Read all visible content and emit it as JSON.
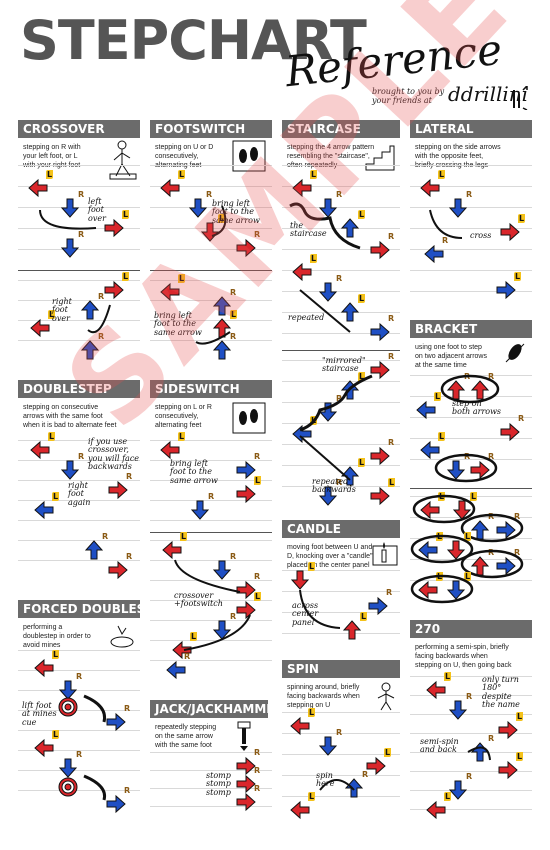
{
  "header": {
    "title": "STEPCHART",
    "subtitle": "Reference",
    "brought": "brought to you by\nyour friends at",
    "logo": "ddrillini"
  },
  "watermark": "SAMPLE",
  "colors": {
    "red": "#d9262b",
    "blue": "#1f4fc4",
    "header_bg": "#6b6b6b",
    "foot_l": "#f4c21a"
  },
  "sections": {
    "crossover": {
      "title": "CROSSOVER",
      "desc": "stepping on R with\nyour left foot, or L\nwith your right foot",
      "notes": [
        "left\nfoot\nover",
        "right\nfoot\nover"
      ]
    },
    "footswitch": {
      "title": "FOOTSWITCH",
      "desc": "stepping on U or D\nconsecutively,\nalternating feet",
      "notes": [
        "bring left\nfoot to the\nsame arrow",
        "bring left\nfoot to the\nsame arrow"
      ]
    },
    "staircase": {
      "title": "STAIRCASE",
      "desc": "stepping the 4 arrow pattern\nresembling the \"staircase\",\noften repeatedly",
      "notes": [
        "the\nstaircase",
        "repeated",
        "\"mirrored\"\nstaircase",
        "repeated\nbackwards"
      ]
    },
    "lateral": {
      "title": "LATERAL",
      "desc": "stepping on the side arrows\nwith the opposite feet,\nbriefly crossing the legs",
      "notes": [
        "cross"
      ]
    },
    "bracket": {
      "title": "BRACKET",
      "desc": "using one foot to step\non two adjacent arrows\nat the same time",
      "notes": [
        "step on\nboth arrows"
      ]
    },
    "doublestep": {
      "title": "DOUBLESTEP",
      "desc": "stepping on consecutive\narrows with the same foot\nwhen it is bad to alternate feet",
      "notes": [
        "if you use\ncrossover,\nyou will face\nbackwards",
        "right\nfoot\nagain"
      ]
    },
    "sideswitch": {
      "title": "SIDESWITCH",
      "desc": "stepping on L or R\nconsecutively,\nalternating feet",
      "notes": [
        "bring left\nfoot to the\nsame arrow",
        "crossover\n+footswitch"
      ]
    },
    "candle": {
      "title": "CANDLE",
      "desc": "moving foot between U and\nD, knocking over a \"candle\"\nplaced on the center panel",
      "notes": [
        "across\ncenter\npanel"
      ]
    },
    "forced_doublestep": {
      "title": "FORCED DOUBLESTEP",
      "desc": "performing a\ndoublestep in order to\navoid mines",
      "notes": [
        "lift foot\nat mines\ncue"
      ]
    },
    "jack": {
      "title": "JACK/JACKHAMMER",
      "desc": "repeatedly stepping\non the same arrow\nwith the same foot",
      "notes": [
        "stomp\nstomp\nstomp"
      ]
    },
    "spin": {
      "title": "SPIN",
      "desc": "spinning around, briefly\nfacing backwards when\nstepping on U",
      "notes": [
        "spin\nhere"
      ]
    },
    "turn270": {
      "title": "270",
      "desc": "performing a semi-spin, briefly\nfacing backwards when\nstepping on U, then going back",
      "notes": [
        "only turn\n180°\ndespite\nthe name",
        "semi-spin\nand back"
      ]
    }
  },
  "foot_labels": {
    "left": "L",
    "right": "R"
  }
}
